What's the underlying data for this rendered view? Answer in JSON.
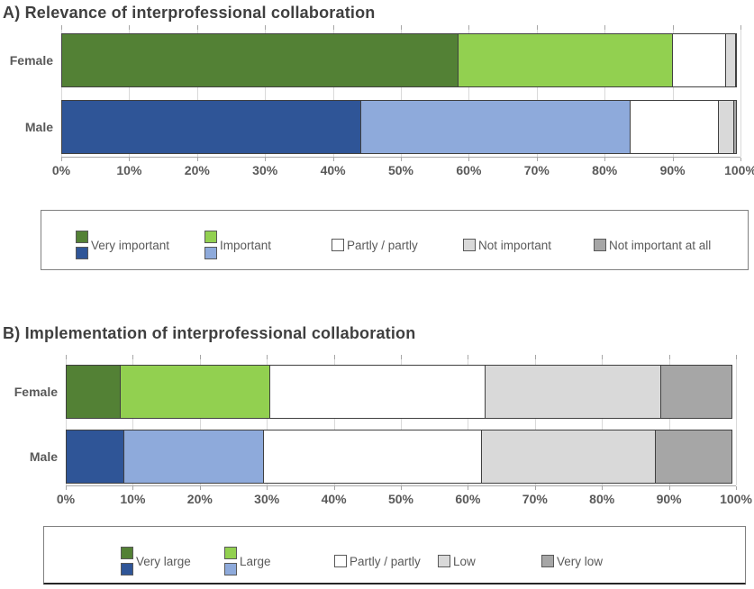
{
  "palette": {
    "dark_green": "#538135",
    "light_green": "#92D050",
    "dark_blue": "#2F5597",
    "light_blue": "#8EAADB",
    "white_segment": "#FFFFFF",
    "light_gray": "#D9D9D9",
    "dark_gray": "#A6A6A6",
    "text": "#595959",
    "title_text": "#3F3F3F",
    "gridline": "#D9D9D9",
    "segment_border": "#404040"
  },
  "chart_data": [
    {
      "type": "bar",
      "orientation": "horizontal",
      "stacked": true,
      "title": "A) Relevance of interprofessional collaboration",
      "categories": [
        "Female",
        "Male"
      ],
      "series": [
        {
          "name": "Very important",
          "values": [
            58.5,
            44.2
          ],
          "colors": [
            "#538135",
            "#2F5597"
          ]
        },
        {
          "name": "Important",
          "values": [
            31.7,
            39.8
          ],
          "colors": [
            "#92D050",
            "#8EAADB"
          ]
        },
        {
          "name": "Partly / partly",
          "values": [
            8.0,
            13.1
          ],
          "colors": [
            "#FFFFFF",
            "#FFFFFF"
          ]
        },
        {
          "name": "Not important",
          "values": [
            1.5,
            2.4
          ],
          "colors": [
            "#D9D9D9",
            "#D9D9D9"
          ]
        },
        {
          "name": "Not important at all",
          "values": [
            0.3,
            0.5
          ],
          "colors": [
            "#A6A6A6",
            "#A6A6A6"
          ]
        }
      ],
      "xlim": [
        0,
        100
      ],
      "x_ticks": [
        "0%",
        "10%",
        "20%",
        "30%",
        "40%",
        "50%",
        "60%",
        "70%",
        "80%",
        "90%",
        "100%"
      ],
      "grid": true,
      "legend_position": "bottom"
    },
    {
      "type": "bar",
      "orientation": "horizontal",
      "stacked": true,
      "title": "B) Implementation of interprofessional collaboration",
      "categories": [
        "Female",
        "Male"
      ],
      "series": [
        {
          "name": "Very large",
          "values": [
            8.2,
            8.7
          ],
          "colors": [
            "#538135",
            "#2F5597"
          ]
        },
        {
          "name": "Large",
          "values": [
            22.5,
            21.0
          ],
          "colors": [
            "#92D050",
            "#8EAADB"
          ]
        },
        {
          "name": "Partly / partly",
          "values": [
            32.2,
            32.7
          ],
          "colors": [
            "#FFFFFF",
            "#FFFFFF"
          ]
        },
        {
          "name": "Low",
          "values": [
            26.4,
            26.0
          ],
          "colors": [
            "#D9D9D9",
            "#D9D9D9"
          ]
        },
        {
          "name": "Very low",
          "values": [
            10.7,
            11.6
          ],
          "colors": [
            "#A6A6A6",
            "#A6A6A6"
          ]
        }
      ],
      "xlim": [
        0,
        100
      ],
      "x_ticks": [
        "0%",
        "10%",
        "20%",
        "30%",
        "40%",
        "50%",
        "60%",
        "70%",
        "80%",
        "90%",
        "100%"
      ],
      "grid": true,
      "legend_position": "bottom"
    }
  ]
}
